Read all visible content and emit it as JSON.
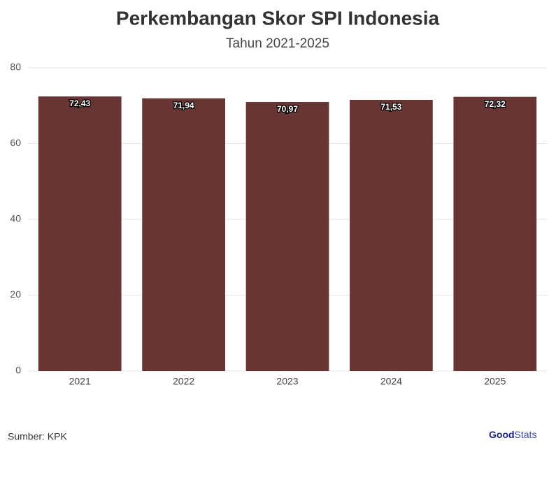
{
  "chart_data": {
    "type": "bar",
    "title": "Perkembangan Skor SPI Indonesia",
    "subtitle": "Tahun 2021-2025",
    "categories": [
      "2021",
      "2022",
      "2023",
      "2024",
      "2025"
    ],
    "values": [
      72.43,
      71.94,
      70.97,
      71.53,
      72.32
    ],
    "value_labels": [
      "72,43",
      "71,94",
      "70,97",
      "71,53",
      "72,32"
    ],
    "color": "#673534",
    "ylim": [
      0,
      80
    ],
    "yticks": [
      0,
      20,
      40,
      60,
      80
    ],
    "grid": true
  },
  "footer": {
    "source": "Sumber: KPK",
    "brand_bold": "Good",
    "brand_light": "Stats"
  }
}
